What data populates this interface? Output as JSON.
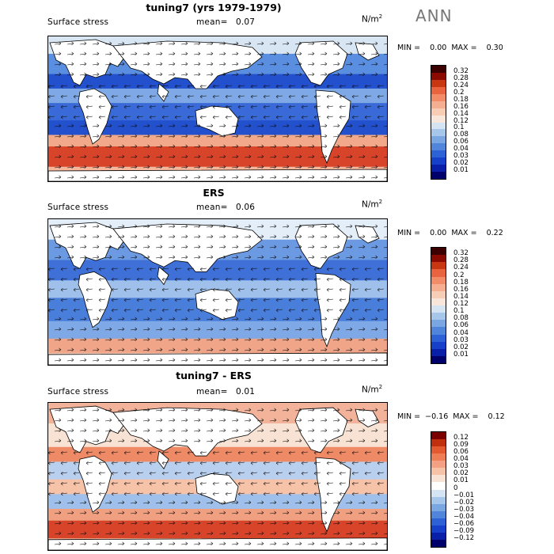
{
  "ann_label": "ANN",
  "colors": {
    "pos": [
      "#3c0000",
      "#8a0a00",
      "#c83712",
      "#e8633e",
      "#f28c68",
      "#f5ae90",
      "#f7cdb5",
      "#f8e6da"
    ],
    "neg": [
      "#d5e4f3",
      "#a7c7ea",
      "#7aa6e1",
      "#5185db",
      "#2d62d6",
      "#1640c9",
      "#0a1fa8",
      "#00006b"
    ],
    "diff": [
      "#7a0000",
      "#c0300e",
      "#e45a30",
      "#ef7e56",
      "#f3a083",
      "#f6c2a8",
      "#f8e2d3",
      "#ffffff",
      "#d5e4f3",
      "#a7c7ea",
      "#7aa6e1",
      "#5185db",
      "#2d62d6",
      "#1640c9",
      "#0a1fa8",
      "#00006b"
    ]
  },
  "panels": [
    {
      "title": "tuning7 (yrs 1979-1979)",
      "variable": "Surface stress",
      "mean_label": "mean=",
      "mean_value": "0.07",
      "unit": "N/m",
      "unit_sup": "2",
      "minmax": "MIN =    0.00  MAX =    0.30",
      "colorbar": [
        "0.32",
        "0.28",
        "0.24",
        "0.2",
        "0.18",
        "0.16",
        "0.14",
        "0.12",
        "0.1",
        "0.08",
        "0.06",
        "0.04",
        "0.03",
        "0.02",
        "0.01"
      ]
    },
    {
      "title": "ERS",
      "variable": "Surface stress",
      "mean_label": "mean=",
      "mean_value": "0.06",
      "unit": "N/m",
      "unit_sup": "2",
      "minmax": "MIN =    0.00  MAX =    0.22",
      "colorbar": [
        "0.32",
        "0.28",
        "0.24",
        "0.2",
        "0.18",
        "0.16",
        "0.14",
        "0.12",
        "0.1",
        "0.08",
        "0.06",
        "0.04",
        "0.03",
        "0.02",
        "0.01"
      ]
    },
    {
      "title": "tuning7 - ERS",
      "variable": "Surface stress",
      "mean_label": "mean=",
      "mean_value": "0.01",
      "unit": "N/m",
      "unit_sup": "2",
      "minmax": "MIN =  −0.16  MAX =    0.12",
      "colorbar": [
        "0.12",
        "0.09",
        "0.06",
        "0.04",
        "0.03",
        "0.02",
        "0.01",
        "0",
        "−0.01",
        "−0.02",
        "−0.03",
        "−0.04",
        "−0.06",
        "−0.09",
        "−0.12"
      ]
    }
  ]
}
